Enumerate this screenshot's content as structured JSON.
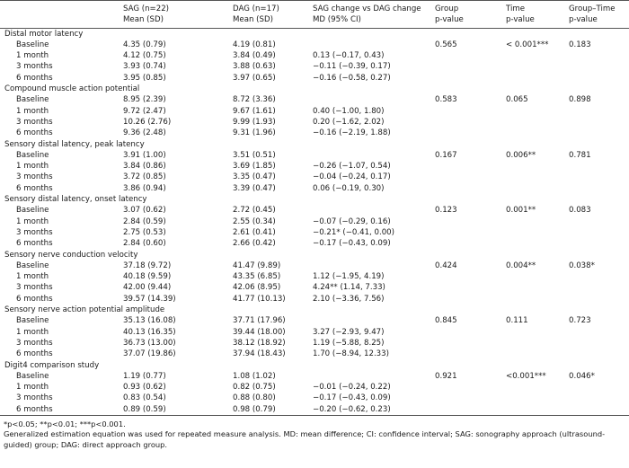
{
  "table": {
    "headers": {
      "sag": "SAG (n=22)",
      "sag_sub": "Mean (SD)",
      "dag": "DAG (n=17)",
      "dag_sub": "Mean (SD)",
      "change": "SAG change vs DAG change",
      "change_sub": "MD (95% CI)",
      "group": "Group",
      "group_sub": "p-value",
      "time": "Time",
      "time_sub": "p-value",
      "gt": "Group–Time",
      "gt_sub": "p-value"
    },
    "sections": [
      {
        "title": "Distal motor latency",
        "rows": [
          {
            "label": "Baseline",
            "sag": "4.35 (0.79)",
            "dag": "4.19 (0.81)",
            "md": "",
            "group_p": "0.565",
            "time_p": "< 0.001***",
            "gt_p": "0.183"
          },
          {
            "label": "1 month",
            "sag": "4.12 (0.75)",
            "dag": "3.84 (0.49)",
            "md": "0.13 (−0.17, 0.43)",
            "group_p": "",
            "time_p": "",
            "gt_p": ""
          },
          {
            "label": "3 months",
            "sag": "3.93 (0.74)",
            "dag": "3.88 (0.63)",
            "md": "−0.11 (−0.39, 0.17)",
            "group_p": "",
            "time_p": "",
            "gt_p": ""
          },
          {
            "label": "6 months",
            "sag": "3.95 (0.85)",
            "dag": "3.97 (0.65)",
            "md": "−0.16 (−0.58, 0.27)",
            "group_p": "",
            "time_p": "",
            "gt_p": ""
          }
        ]
      },
      {
        "title": "Compound muscle action potential",
        "rows": [
          {
            "label": "Baseline",
            "sag": "8.95 (2.39)",
            "dag": "8.72 (3.36)",
            "md": "",
            "group_p": "0.583",
            "time_p": "0.065",
            "gt_p": "0.898"
          },
          {
            "label": "1 month",
            "sag": "9.72 (2.47)",
            "dag": "9.67 (1.61)",
            "md": "0.40 (−1.00, 1.80)",
            "group_p": "",
            "time_p": "",
            "gt_p": ""
          },
          {
            "label": "3 months",
            "sag": "10.26 (2.76)",
            "dag": "9.99 (1.93)",
            "md": "0.20 (−1.62, 2.02)",
            "group_p": "",
            "time_p": "",
            "gt_p": ""
          },
          {
            "label": "6 months",
            "sag": "9.36 (2.48)",
            "dag": "9.31 (1.96)",
            "md": "−0.16 (−2.19, 1.88)",
            "group_p": "",
            "time_p": "",
            "gt_p": ""
          }
        ]
      },
      {
        "title": "Sensory distal latency, peak latency",
        "rows": [
          {
            "label": "Baseline",
            "sag": "3.91 (1.00)",
            "dag": "3.51 (0.51)",
            "md": "",
            "group_p": "0.167",
            "time_p": "0.006**",
            "gt_p": "0.781"
          },
          {
            "label": "1 month",
            "sag": "3.84 (0.86)",
            "dag": "3.69 (1.85)",
            "md": "−0.26 (−1.07, 0.54)",
            "group_p": "",
            "time_p": "",
            "gt_p": ""
          },
          {
            "label": "3 months",
            "sag": "3.72 (0.85)",
            "dag": "3.35 (0.47)",
            "md": "−0.04 (−0.24, 0.17)",
            "group_p": "",
            "time_p": "",
            "gt_p": ""
          },
          {
            "label": "6 months",
            "sag": "3.86 (0.94)",
            "dag": "3.39 (0.47)",
            "md": "0.06 (−0.19, 0.30)",
            "group_p": "",
            "time_p": "",
            "gt_p": ""
          }
        ]
      },
      {
        "title": "Sensory distal latency, onset latency",
        "rows": [
          {
            "label": "Baseline",
            "sag": "3.07 (0.62)",
            "dag": "2.72 (0.45)",
            "md": "",
            "group_p": "0.123",
            "time_p": "0.001**",
            "gt_p": "0.083"
          },
          {
            "label": "1 month",
            "sag": "2.84 (0.59)",
            "dag": "2.55 (0.34)",
            "md": "−0.07 (−0.29, 0.16)",
            "group_p": "",
            "time_p": "",
            "gt_p": ""
          },
          {
            "label": "3 months",
            "sag": "2.75 (0.53)",
            "dag": "2.61 (0.41)",
            "md": "−0.21* (−0.41, 0.00)",
            "group_p": "",
            "time_p": "",
            "gt_p": ""
          },
          {
            "label": "6 months",
            "sag": "2.84 (0.60)",
            "dag": "2.66 (0.42)",
            "md": "−0.17 (−0.43, 0.09)",
            "group_p": "",
            "time_p": "",
            "gt_p": ""
          }
        ]
      },
      {
        "title": "Sensory nerve conduction velocity",
        "rows": [
          {
            "label": "Baseline",
            "sag": "37.18 (9.72)",
            "dag": "41.47 (9.89)",
            "md": "",
            "group_p": "0.424",
            "time_p": "0.004**",
            "gt_p": "0.038*"
          },
          {
            "label": "1 month",
            "sag": "40.18 (9.59)",
            "dag": "43.35 (6.85)",
            "md": "1.12 (−1.95, 4.19)",
            "group_p": "",
            "time_p": "",
            "gt_p": ""
          },
          {
            "label": "3 months",
            "sag": "42.00 (9.44)",
            "dag": "42.06 (8.95)",
            "md": "4.24** (1.14, 7.33)",
            "group_p": "",
            "time_p": "",
            "gt_p": ""
          },
          {
            "label": "6 months",
            "sag": "39.57 (14.39)",
            "dag": "41.77 (10.13)",
            "md": "2.10 (−3.36, 7.56)",
            "group_p": "",
            "time_p": "",
            "gt_p": ""
          }
        ]
      },
      {
        "title": "Sensory nerve action potential amplitude",
        "rows": [
          {
            "label": "Baseline",
            "sag": "35.13 (16.08)",
            "dag": "37.71 (17.96)",
            "md": "",
            "group_p": "0.845",
            "time_p": "0.111",
            "gt_p": "0.723"
          },
          {
            "label": "1 month",
            "sag": "40.13 (16.35)",
            "dag": "39.44 (18.00)",
            "md": "3.27 (−2.93, 9.47)",
            "group_p": "",
            "time_p": "",
            "gt_p": ""
          },
          {
            "label": "3 months",
            "sag": "36.73 (13.00)",
            "dag": "38.12 (18.92)",
            "md": "1.19 (−5.88, 8.25)",
            "group_p": "",
            "time_p": "",
            "gt_p": ""
          },
          {
            "label": "6 months",
            "sag": "37.07 (19.86)",
            "dag": "37.94 (18.43)",
            "md": "1.70 (−8.94, 12.33)",
            "group_p": "",
            "time_p": "",
            "gt_p": ""
          }
        ]
      },
      {
        "title": "Digit4 comparison study",
        "rows": [
          {
            "label": "Baseline",
            "sag": "1.19 (0.77)",
            "dag": "1.08 (1.02)",
            "md": "",
            "group_p": "0.921",
            "time_p": "<0.001***",
            "gt_p": "0.046*"
          },
          {
            "label": "1 month",
            "sag": "0.93 (0.62)",
            "dag": "0.82 (0.75)",
            "md": "−0.01 (−0.24, 0.22)",
            "group_p": "",
            "time_p": "",
            "gt_p": ""
          },
          {
            "label": "3 months",
            "sag": "0.83 (0.54)",
            "dag": "0.88 (0.80)",
            "md": "−0.17 (−0.43, 0.09)",
            "group_p": "",
            "time_p": "",
            "gt_p": ""
          },
          {
            "label": "6 months",
            "sag": "0.89 (0.59)",
            "dag": "0.98 (0.79)",
            "md": "−0.20 (−0.62, 0.23)",
            "group_p": "",
            "time_p": "",
            "gt_p": ""
          }
        ]
      }
    ]
  },
  "footnotes": [
    "*p<0.05; **p<0.01; ***p<0.001.",
    "Generalized estimation equation was used for repeated measure analysis. MD: mean difference; CI: confidence interval; SAG: sonography approach (ultrasound-",
    "guided) group; DAG: direct approach group."
  ]
}
